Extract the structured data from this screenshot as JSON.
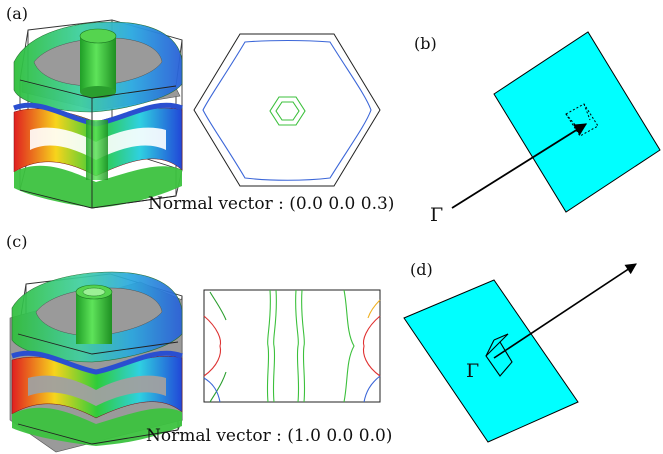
{
  "panels": {
    "a": {
      "label": "(a)",
      "normal_vector": "Normal vector : (0.0 0.0 0.3)"
    },
    "b": {
      "label": "(b)",
      "point": "Γ"
    },
    "c": {
      "label": "(c)",
      "normal_vector": "Normal vector : (1.0 0.0 0.0)"
    },
    "d": {
      "label": "(d)",
      "point": "Γ"
    }
  },
  "colors": {
    "plane": "#00ffff",
    "gray_slice": "#8f8f8f",
    "blue_band": "#2b6fe0",
    "green_band": "#36c23a",
    "contour_blue": "#3b66d8",
    "contour_green": "#3cc03c"
  }
}
